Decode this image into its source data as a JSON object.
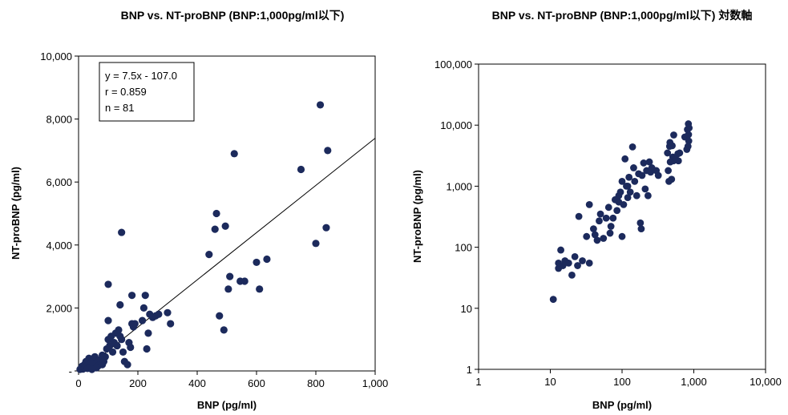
{
  "chart_data": [
    {
      "type": "scatter",
      "title": "BNP vs. NT-proBNP (BNP:1,000pg/ml以下)",
      "xlabel": "BNP (pg/ml)",
      "ylabel": "NT-proBNP (pg/ml)",
      "xlim": [
        0,
        1000
      ],
      "ylim": [
        0,
        10000
      ],
      "xticks": [
        0,
        200,
        400,
        600,
        800,
        1000
      ],
      "xtick_labels": [
        "0",
        "200",
        "400",
        "600",
        "800",
        "1,000"
      ],
      "yticks": [
        0,
        2000,
        4000,
        6000,
        8000,
        10000
      ],
      "ytick_labels": [
        "-",
        "2,000",
        "4,000",
        "6,000",
        "8,000",
        "10,000"
      ],
      "stats": [
        "y = 7.5x - 107.0",
        "r = 0.859",
        "n = 81"
      ],
      "regression": {
        "slope": 7.5,
        "intercept": -107.0
      },
      "points": [
        [
          5,
          50
        ],
        [
          10,
          80
        ],
        [
          12,
          150
        ],
        [
          15,
          60
        ],
        [
          18,
          120
        ],
        [
          20,
          200
        ],
        [
          22,
          100
        ],
        [
          25,
          300
        ],
        [
          28,
          150
        ],
        [
          30,
          80
        ],
        [
          32,
          250
        ],
        [
          35,
          400
        ],
        [
          38,
          200
        ],
        [
          40,
          120
        ],
        [
          45,
          300
        ],
        [
          50,
          200
        ],
        [
          55,
          450
        ],
        [
          60,
          250
        ],
        [
          65,
          150
        ],
        [
          70,
          350
        ],
        [
          75,
          250
        ],
        [
          80,
          500
        ],
        [
          85,
          300
        ],
        [
          90,
          450
        ],
        [
          95,
          700
        ],
        [
          100,
          1000
        ],
        [
          105,
          800
        ],
        [
          110,
          1100
        ],
        [
          115,
          600
        ],
        [
          120,
          900
        ],
        [
          125,
          1200
        ],
        [
          130,
          800
        ],
        [
          135,
          1300
        ],
        [
          140,
          1100
        ],
        [
          145,
          1000
        ],
        [
          150,
          600
        ],
        [
          155,
          300
        ],
        [
          165,
          200
        ],
        [
          170,
          900
        ],
        [
          175,
          750
        ],
        [
          180,
          1500
        ],
        [
          185,
          1400
        ],
        [
          190,
          1500
        ],
        [
          215,
          1600
        ],
        [
          220,
          2000
        ],
        [
          230,
          700
        ],
        [
          235,
          1200
        ],
        [
          240,
          1800
        ],
        [
          250,
          1700
        ],
        [
          260,
          1750
        ],
        [
          270,
          1800
        ],
        [
          300,
          1850
        ],
        [
          310,
          1500
        ],
        [
          100,
          1600
        ],
        [
          100,
          2750
        ],
        [
          140,
          2100
        ],
        [
          145,
          4400
        ],
        [
          180,
          2400
        ],
        [
          225,
          2400
        ],
        [
          440,
          3700
        ],
        [
          460,
          4500
        ],
        [
          465,
          5000
        ],
        [
          475,
          1750
        ],
        [
          490,
          1300
        ],
        [
          495,
          4600
        ],
        [
          505,
          2600
        ],
        [
          510,
          3000
        ],
        [
          525,
          6900
        ],
        [
          545,
          2850
        ],
        [
          560,
          2850
        ],
        [
          600,
          3450
        ],
        [
          610,
          2600
        ],
        [
          635,
          3550
        ],
        [
          750,
          6400
        ],
        [
          800,
          4050
        ],
        [
          815,
          8450
        ],
        [
          835,
          4550
        ],
        [
          840,
          7000
        ],
        [
          80,
          200
        ],
        [
          60,
          100
        ],
        [
          45,
          50
        ]
      ]
    },
    {
      "type": "scatter",
      "title": "BNP vs. NT-proBNP (BNP:1,000pg/ml以下) 対数軸",
      "xlabel": "BNP (pg/ml)",
      "ylabel": "NT-proBNP (pg/ml)",
      "xscale": "log",
      "yscale": "log",
      "xlim": [
        1,
        10000
      ],
      "ylim": [
        1,
        100000
      ],
      "xticks": [
        1,
        10,
        100,
        1000,
        10000
      ],
      "xtick_labels": [
        "1",
        "10",
        "100",
        "1,000",
        "10,000"
      ],
      "yticks": [
        1,
        10,
        100,
        1000,
        10000,
        100000
      ],
      "ytick_labels": [
        "1",
        "10",
        "100",
        "1,000",
        "10,000",
        "100,000"
      ],
      "points": [
        [
          11,
          14
        ],
        [
          13,
          45
        ],
        [
          13,
          55
        ],
        [
          14,
          90
        ],
        [
          15,
          50
        ],
        [
          16,
          60
        ],
        [
          18,
          55
        ],
        [
          20,
          35
        ],
        [
          22,
          70
        ],
        [
          24,
          50
        ],
        [
          25,
          320
        ],
        [
          28,
          60
        ],
        [
          32,
          150
        ],
        [
          35,
          500
        ],
        [
          35,
          55
        ],
        [
          40,
          200
        ],
        [
          42,
          160
        ],
        [
          45,
          130
        ],
        [
          48,
          270
        ],
        [
          50,
          350
        ],
        [
          55,
          140
        ],
        [
          60,
          300
        ],
        [
          65,
          450
        ],
        [
          68,
          170
        ],
        [
          70,
          220
        ],
        [
          75,
          300
        ],
        [
          80,
          600
        ],
        [
          85,
          400
        ],
        [
          90,
          700
        ],
        [
          95,
          800
        ],
        [
          100,
          150
        ],
        [
          100,
          1200
        ],
        [
          105,
          500
        ],
        [
          110,
          2800
        ],
        [
          115,
          1000
        ],
        [
          120,
          650
        ],
        [
          125,
          1400
        ],
        [
          130,
          800
        ],
        [
          140,
          4400
        ],
        [
          145,
          2000
        ],
        [
          150,
          1200
        ],
        [
          160,
          700
        ],
        [
          170,
          1600
        ],
        [
          180,
          250
        ],
        [
          185,
          200
        ],
        [
          190,
          1500
        ],
        [
          200,
          2400
        ],
        [
          210,
          900
        ],
        [
          220,
          1800
        ],
        [
          230,
          700
        ],
        [
          240,
          2500
        ],
        [
          250,
          1700
        ],
        [
          260,
          2000
        ],
        [
          300,
          1800
        ],
        [
          320,
          1500
        ],
        [
          430,
          3500
        ],
        [
          440,
          1800
        ],
        [
          450,
          1200
        ],
        [
          460,
          4500
        ],
        [
          465,
          5200
        ],
        [
          470,
          2500
        ],
        [
          490,
          1300
        ],
        [
          500,
          4600
        ],
        [
          510,
          3000
        ],
        [
          520,
          2600
        ],
        [
          525,
          6900
        ],
        [
          545,
          2900
        ],
        [
          560,
          2800
        ],
        [
          600,
          3400
        ],
        [
          610,
          2600
        ],
        [
          635,
          3500
        ],
        [
          750,
          6400
        ],
        [
          800,
          4000
        ],
        [
          815,
          8500
        ],
        [
          830,
          4500
        ],
        [
          840,
          10500
        ],
        [
          845,
          7000
        ],
        [
          850,
          5500
        ],
        [
          860,
          9000
        ],
        [
          120,
          1000
        ],
        [
          90,
          550
        ]
      ]
    }
  ]
}
